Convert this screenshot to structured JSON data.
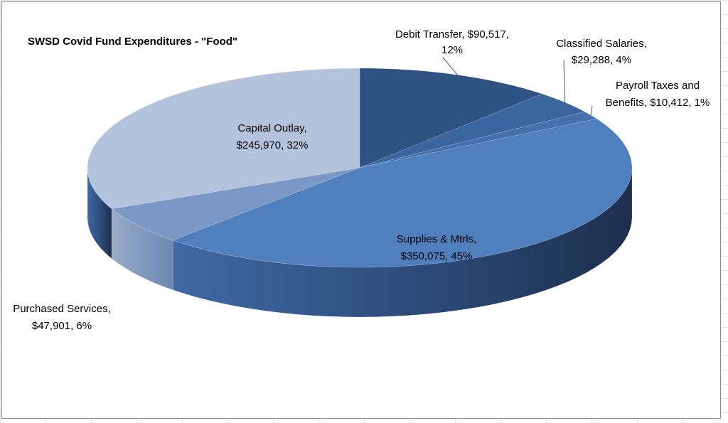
{
  "chart_data": {
    "type": "pie",
    "style": "3d-exploded-perspective",
    "title": "SWSD Covid Fund Expenditures - \"Food\"",
    "slices": [
      {
        "name": "Debit Transfer",
        "value": 90517,
        "percent": 12,
        "value_label": "$90,517",
        "color": "#2e5382"
      },
      {
        "name": "Classified Salaries",
        "value": 29288,
        "percent": 4,
        "value_label": "$29,288",
        "color": "#3a66a0"
      },
      {
        "name": "Payroll Taxes and Benefits",
        "value": 10412,
        "percent": 1,
        "value_label": "$10,412",
        "color": "#4470ac"
      },
      {
        "name": "Supplies & Mtrls",
        "value": 350075,
        "percent": 45,
        "value_label": "$350,075",
        "color": "#4f80bd"
      },
      {
        "name": "Purchased Services",
        "value": 47901,
        "percent": 6,
        "value_label": "$47,901",
        "color": "#7b97c6"
      },
      {
        "name": "Capital Outlay",
        "value": 245970,
        "percent": 32,
        "value_label": "$245,970",
        "color": "#b4c3dc"
      }
    ]
  },
  "labels": {
    "debit_transfer": {
      "line1": "Debit Transfer, $90,517,",
      "line2": "12%"
    },
    "classified_salaries": {
      "line1": "Classified Salaries,",
      "line2": "$29,288, 4%"
    },
    "payroll_taxes": {
      "line1": "Payroll Taxes and",
      "line2": "Benefits, $10,412, 1%"
    },
    "supplies": {
      "line1": "Supplies & Mtrls,",
      "line2": "$350,075, 45%"
    },
    "purchased_services": {
      "line1": "Purchased Services,",
      "line2": "$47,901, 6%"
    },
    "capital_outlay": {
      "line1": "Capital Outlay,",
      "line2": "$245,970, 32%"
    }
  }
}
